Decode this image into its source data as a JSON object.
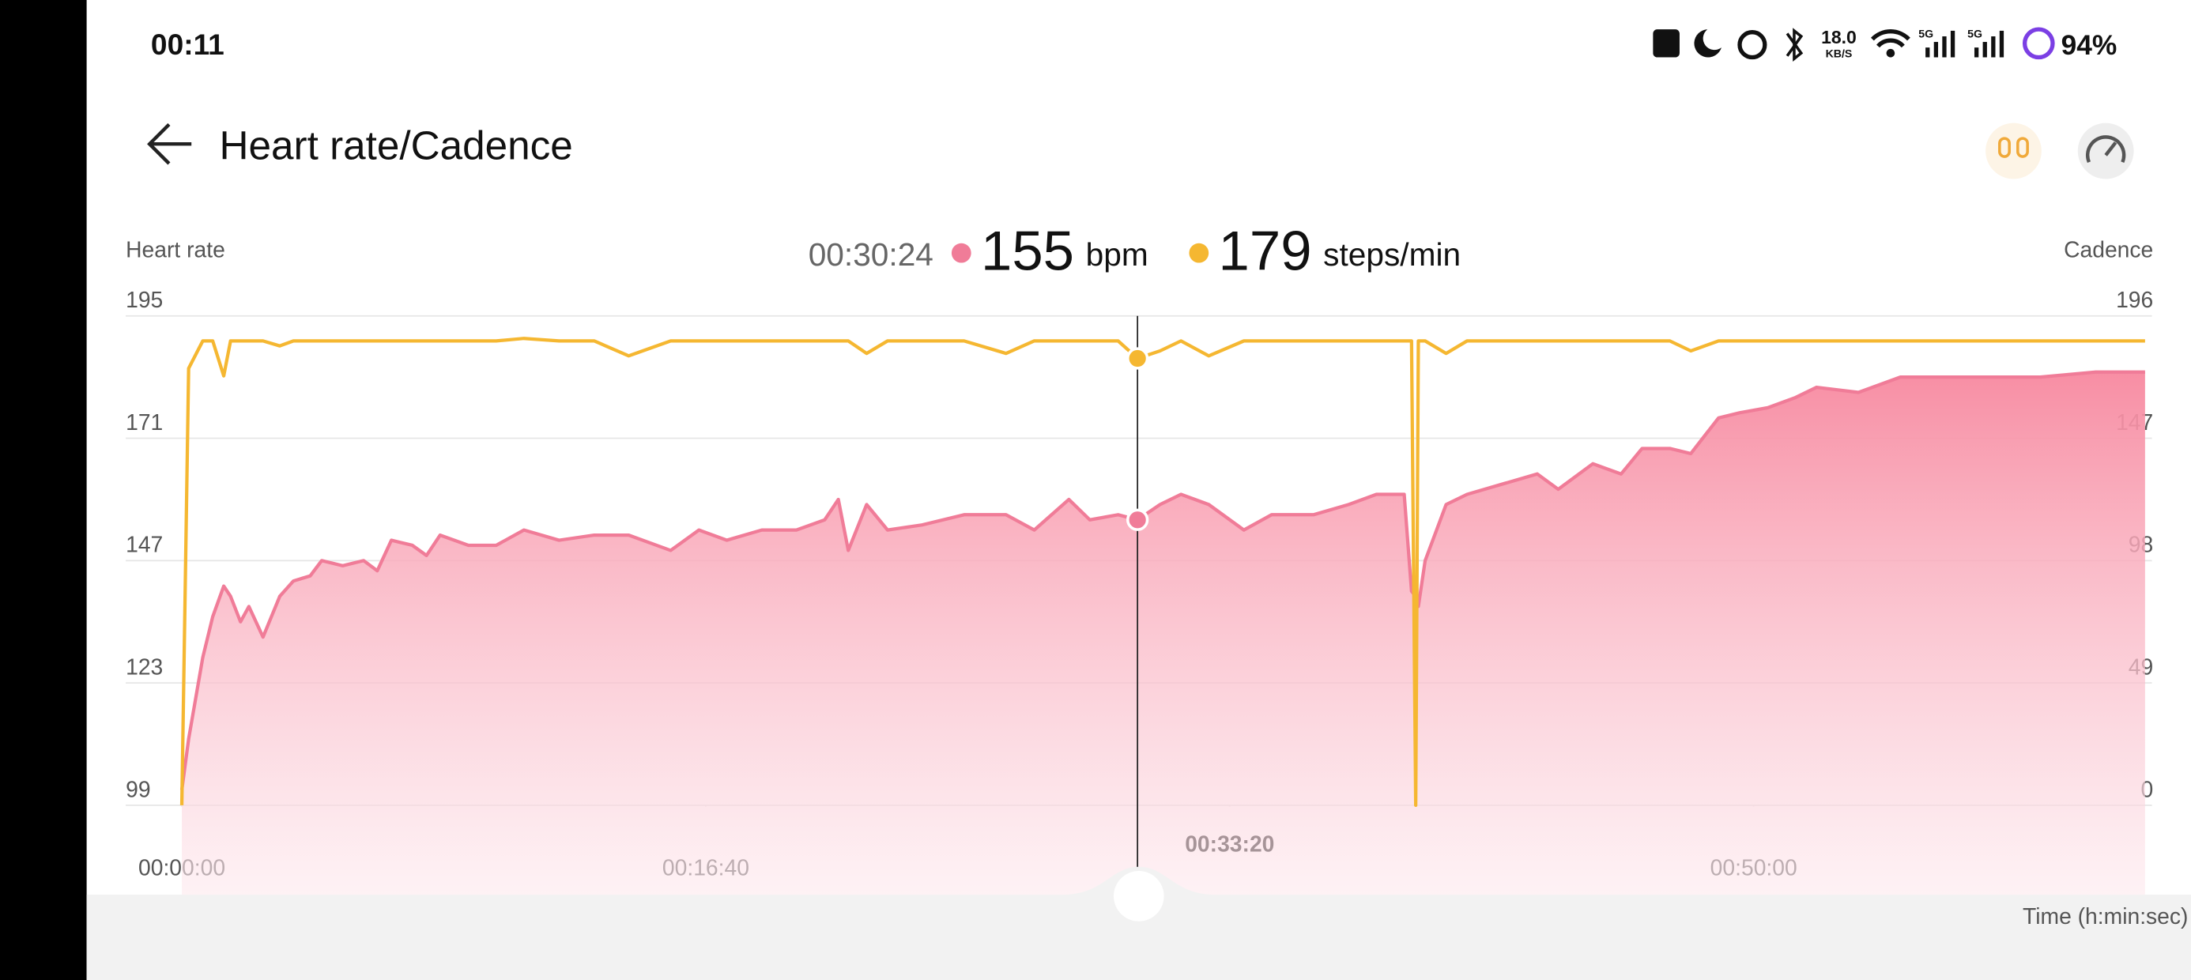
{
  "status_bar": {
    "time": "00:11",
    "net_speed": "18.0",
    "net_unit": "KB/S",
    "sim1": "5G",
    "sim2": "5G",
    "battery": "94%"
  },
  "header": {
    "title": "Heart rate/Cadence"
  },
  "readout": {
    "time": "00:30:24",
    "heart_rate": 155,
    "heart_rate_unit": "bpm",
    "cadence": 179,
    "cadence_unit": "steps/min"
  },
  "chart_data": {
    "type": "line",
    "ylabel": "Heart rate",
    "y2label": "Cadence",
    "xlabel": "Time (h:min:sec)",
    "x": [
      0,
      13,
      40,
      59,
      80,
      93,
      112,
      128,
      155,
      187,
      213,
      245,
      267,
      307,
      347,
      373,
      400,
      440,
      467,
      493,
      547,
      600,
      653,
      720,
      787,
      853,
      933,
      987,
      1040,
      1107,
      1173,
      1227,
      1253,
      1272,
      1307,
      1347,
      1413,
      1493,
      1573,
      1627,
      1693,
      1733,
      1787,
      1824,
      1867,
      1907,
      1960,
      2027,
      2080,
      2160,
      2227,
      2280,
      2333,
      2347,
      2355,
      2360,
      2373,
      2413,
      2453,
      2520,
      2587,
      2627,
      2693,
      2747,
      2787,
      2840,
      2880,
      2933,
      2973,
      3027,
      3080,
      3120,
      3200,
      3280,
      3360,
      3440,
      3547,
      3653,
      3747
    ],
    "series": [
      {
        "name": "Heart rate",
        "color": "#f07c98",
        "fill": true,
        "values": [
          102,
          112,
          128,
          136,
          142,
          140,
          135,
          138,
          132,
          140,
          143,
          144,
          147,
          146,
          147,
          145,
          151,
          150,
          148,
          152,
          150,
          150,
          153,
          151,
          152,
          152,
          149,
          153,
          151,
          153,
          153,
          155,
          159,
          149,
          158,
          153,
          154,
          156,
          156,
          153,
          159,
          155,
          156,
          155,
          158,
          160,
          158,
          153,
          156,
          156,
          158,
          160,
          160,
          141,
          140,
          138,
          147,
          158,
          160,
          162,
          164,
          161,
          166,
          164,
          169,
          169,
          168,
          175,
          176,
          177,
          179,
          181,
          180,
          183,
          183,
          183,
          183,
          184,
          184
        ]
      },
      {
        "name": "Cadence",
        "color": "#f5b731",
        "axis": "y2",
        "values": [
          0,
          175,
          186,
          186,
          172,
          186,
          186,
          186,
          186,
          184,
          186,
          186,
          186,
          186,
          186,
          186,
          186,
          186,
          186,
          186,
          186,
          186,
          187,
          186,
          186,
          180,
          186,
          186,
          186,
          186,
          186,
          186,
          186,
          186,
          181,
          186,
          186,
          186,
          181,
          186,
          186,
          186,
          186,
          179,
          182,
          186,
          180,
          186,
          186,
          186,
          186,
          186,
          186,
          186,
          0,
          186,
          186,
          181,
          186,
          186,
          186,
          186,
          186,
          186,
          186,
          186,
          182,
          186,
          186,
          186,
          186,
          186,
          186,
          186,
          186,
          186,
          186,
          186,
          186
        ]
      }
    ],
    "xlim": [
      -107,
      3760
    ],
    "xticks": [
      {
        "value": 0,
        "label": "00:00:00"
      },
      {
        "value": 1000,
        "label": "00:16:40"
      },
      {
        "value": 2000,
        "label": "00:33:20",
        "bold": true
      },
      {
        "value": 3000,
        "label": "00:50:00"
      }
    ],
    "ylim": [
      99,
      195
    ],
    "yticks": [
      99,
      123,
      147,
      171,
      195
    ],
    "y2lim": [
      0,
      196
    ],
    "y2ticks": [
      0,
      49,
      98,
      147,
      196
    ],
    "grid": true
  }
}
